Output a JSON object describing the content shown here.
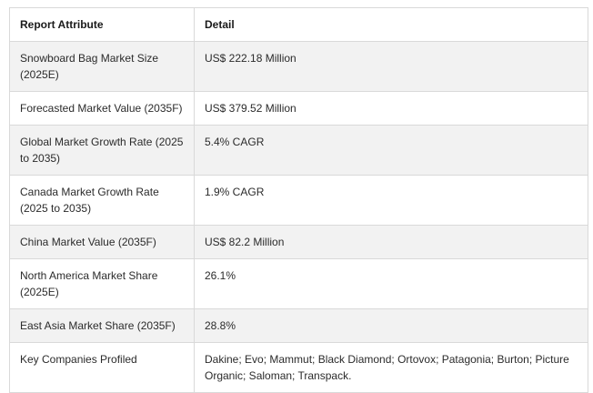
{
  "table": {
    "headers": [
      "Report Attribute",
      "Detail"
    ],
    "rows": [
      [
        "Snowboard Bag Market Size (2025E)",
        "US$ 222.18 Million"
      ],
      [
        "Forecasted Market Value (2035F)",
        "US$ 379.52 Million"
      ],
      [
        "Global Market Growth Rate (2025 to 2035)",
        "5.4% CAGR"
      ],
      [
        "Canada Market Growth Rate (2025 to 2035)",
        "1.9% CAGR"
      ],
      [
        "China Market Value (2035F)",
        "US$ 82.2 Million"
      ],
      [
        "North America Market Share (2025E)",
        "26.1%"
      ],
      [
        "East Asia Market Share (2035F)",
        "28.8%"
      ],
      [
        "Key Companies Profiled",
        "Dakine; Evo; Mammut; Black Diamond; Ortovox; Patagonia; Burton; Picture Organic; Saloman; Transpack."
      ]
    ]
  }
}
